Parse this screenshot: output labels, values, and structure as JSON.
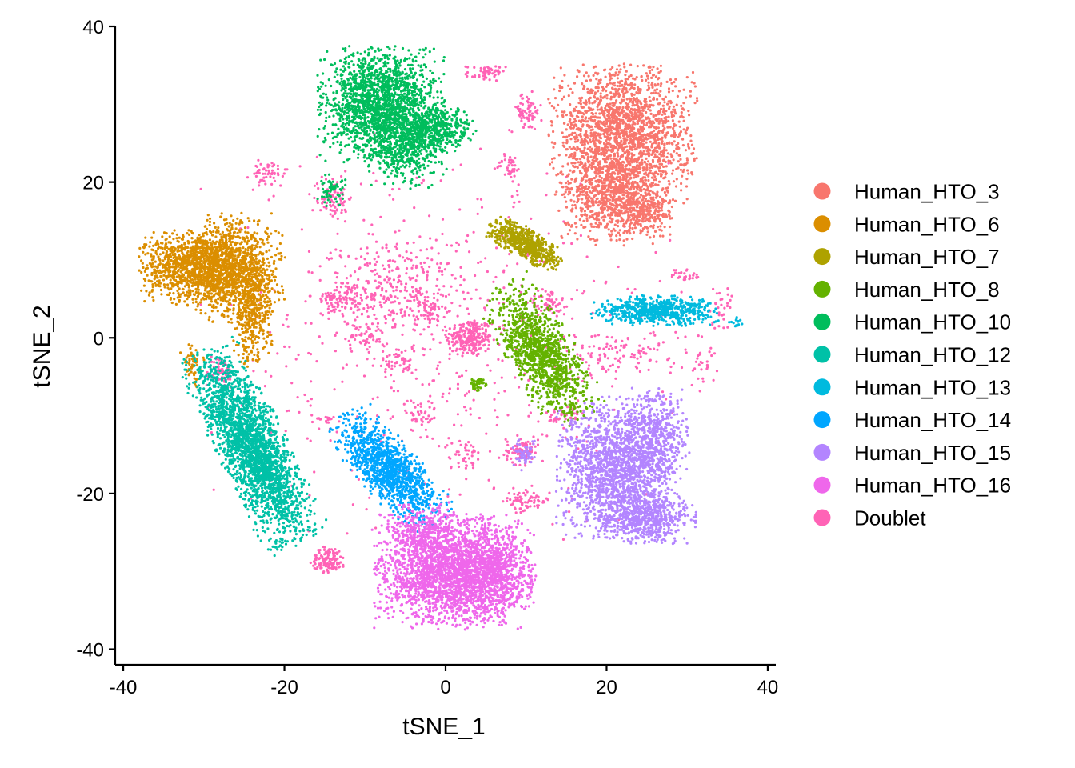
{
  "chart_data": {
    "type": "scatter",
    "xlabel": "tSNE_1",
    "ylabel": "tSNE_2",
    "xlim": [
      -41,
      41
    ],
    "ylim": [
      -42,
      40
    ],
    "xticks": [
      -40,
      -20,
      0,
      20,
      40
    ],
    "yticks": [
      -40,
      -20,
      0,
      20,
      40
    ],
    "grid": false,
    "legend_position": "right",
    "series": [
      {
        "name": "Human_HTO_3",
        "color": "#F8766D",
        "clusters": [
          {
            "cx": 22,
            "cy": 26,
            "sx": 4.2,
            "sy": 4.2,
            "n": 2100
          },
          {
            "cx": 21,
            "cy": 18,
            "sx": 3.2,
            "sy": 2.8,
            "n": 900
          },
          {
            "cx": 25,
            "cy": 16,
            "sx": 1.5,
            "sy": 1.0,
            "n": 150
          }
        ]
      },
      {
        "name": "Human_HTO_6",
        "color": "#DB8E00",
        "clusters": [
          {
            "cx": -31,
            "cy": 9,
            "sx": 3.2,
            "sy": 2.3,
            "n": 1200
          },
          {
            "cx": -26,
            "cy": 9,
            "sx": 2.8,
            "sy": 3.2,
            "n": 1000
          },
          {
            "cx": -24,
            "cy": 3,
            "sx": 1.2,
            "sy": 3.2,
            "n": 400
          },
          {
            "cx": -31.5,
            "cy": -3.5,
            "sx": 0.7,
            "sy": 1.3,
            "n": 60
          }
        ]
      },
      {
        "name": "Human_HTO_7",
        "color": "#AEA200",
        "clusters": [
          {
            "cx": 10,
            "cy": 12,
            "sx": 2.4,
            "sy": 0.9,
            "rot": -32,
            "n": 650
          }
        ]
      },
      {
        "name": "Human_HTO_8",
        "color": "#64B200",
        "clusters": [
          {
            "cx": 12,
            "cy": -2,
            "sx": 1.9,
            "sy": 4.6,
            "rot": 30,
            "n": 1300
          },
          {
            "cx": 4,
            "cy": -6,
            "sx": 0.6,
            "sy": 0.4,
            "n": 40
          }
        ]
      },
      {
        "name": "Human_HTO_10",
        "color": "#00BD5C",
        "clusters": [
          {
            "cx": -8,
            "cy": 30,
            "sx": 3.6,
            "sy": 3.4,
            "n": 2000
          },
          {
            "cx": -5,
            "cy": 24,
            "sx": 2.5,
            "sy": 2.2,
            "n": 500
          },
          {
            "cx": -1,
            "cy": 27,
            "sx": 2.2,
            "sy": 1.5,
            "n": 400
          },
          {
            "cx": -14,
            "cy": 19,
            "sx": 0.9,
            "sy": 1.0,
            "n": 70
          }
        ]
      },
      {
        "name": "Human_HTO_12",
        "color": "#00C1A7",
        "clusters": [
          {
            "cx": -24,
            "cy": -14,
            "sx": 2.0,
            "sy": 6.3,
            "rot": 25,
            "n": 2600
          }
        ]
      },
      {
        "name": "Human_HTO_13",
        "color": "#00BADE",
        "clusters": [
          {
            "cx": 26,
            "cy": 3.5,
            "sx": 3.6,
            "sy": 0.9,
            "n": 700
          },
          {
            "cx": 36,
            "cy": 2,
            "sx": 0.6,
            "sy": 0.3,
            "n": 15
          }
        ]
      },
      {
        "name": "Human_HTO_14",
        "color": "#00A6FF",
        "clusters": [
          {
            "cx": -7,
            "cy": -17,
            "sx": 1.7,
            "sy": 4.2,
            "rot": 40,
            "n": 1300
          }
        ]
      },
      {
        "name": "Human_HTO_15",
        "color": "#B385FF",
        "clusters": [
          {
            "cx": 21,
            "cy": -17,
            "sx": 3.3,
            "sy": 4.3,
            "n": 1800
          },
          {
            "cx": 26,
            "cy": -13,
            "sx": 2.0,
            "sy": 3.0,
            "n": 500
          },
          {
            "cx": 25,
            "cy": -23,
            "sx": 2.8,
            "sy": 1.6,
            "n": 600
          },
          {
            "cx": 10,
            "cy": -15,
            "sx": 0.8,
            "sy": 1.0,
            "n": 60
          }
        ]
      },
      {
        "name": "Human_HTO_16",
        "color": "#EF67EB",
        "clusters": [
          {
            "cx": 1,
            "cy": -30,
            "sx": 4.6,
            "sy": 3.4,
            "n": 2700
          },
          {
            "cx": 6,
            "cy": -30,
            "sx": 2.4,
            "sy": 2.3,
            "n": 500
          },
          {
            "cx": -3,
            "cy": -25,
            "sx": 2.0,
            "sy": 1.8,
            "n": 300
          }
        ]
      },
      {
        "name": "Doublet",
        "color": "#FF63B6",
        "clusters": [
          {
            "cx": 3,
            "cy": 0,
            "sx": 1.4,
            "sy": 1.2,
            "n": 250
          },
          {
            "cx": -7,
            "cy": 6,
            "sx": 4.0,
            "sy": 3.0,
            "n": 300
          },
          {
            "cx": -13,
            "cy": 5,
            "sx": 1.2,
            "sy": 1.0,
            "n": 80
          },
          {
            "cx": 5,
            "cy": 34,
            "sx": 1.2,
            "sy": 0.5,
            "n": 60
          },
          {
            "cx": 10,
            "cy": 29,
            "sx": 1.0,
            "sy": 1.2,
            "n": 70
          },
          {
            "cx": -22,
            "cy": 21,
            "sx": 1.2,
            "sy": 0.9,
            "n": 60
          },
          {
            "cx": -14,
            "cy": 18,
            "sx": 1.2,
            "sy": 1.5,
            "n": 90
          },
          {
            "cx": 8,
            "cy": 22,
            "sx": 0.8,
            "sy": 0.8,
            "n": 40
          },
          {
            "cx": -28,
            "cy": -4.5,
            "sx": 0.9,
            "sy": 1.0,
            "n": 90
          },
          {
            "cx": -14.5,
            "cy": -28.5,
            "sx": 1.1,
            "sy": 0.8,
            "n": 130
          },
          {
            "cx": 9.5,
            "cy": -14.5,
            "sx": 1.0,
            "sy": 0.9,
            "n": 90
          },
          {
            "cx": 10,
            "cy": -21,
            "sx": 1.5,
            "sy": 0.8,
            "n": 80
          },
          {
            "cx": -2,
            "cy": 4,
            "sx": 1.0,
            "sy": 1.0,
            "n": 60
          },
          {
            "cx": -10,
            "cy": 0,
            "sx": 1.2,
            "sy": 1.0,
            "n": 50
          },
          {
            "cx": -6,
            "cy": -3,
            "sx": 1.3,
            "sy": 1.0,
            "n": 50
          },
          {
            "cx": 22,
            "cy": -2,
            "sx": 4.0,
            "sy": 1.5,
            "n": 120
          },
          {
            "cx": 30,
            "cy": 8,
            "sx": 1.0,
            "sy": 0.5,
            "n": 30
          },
          {
            "cx": 34,
            "cy": 4,
            "sx": 0.8,
            "sy": 1.4,
            "n": 30
          },
          {
            "cx": 32,
            "cy": -3,
            "sx": 0.8,
            "sy": 1.8,
            "n": 30
          },
          {
            "cx": 13,
            "cy": 4.5,
            "sx": 1.0,
            "sy": 1.0,
            "n": 60
          },
          {
            "cx": 2,
            "cy": -15,
            "sx": 1.0,
            "sy": 1.0,
            "n": 40
          },
          {
            "cx": -3,
            "cy": -10,
            "sx": 1.0,
            "sy": 1.0,
            "n": 40
          },
          {
            "cx": 15,
            "cy": -10,
            "sx": 1.2,
            "sy": 0.8,
            "n": 40
          },
          {
            "cx": -15,
            "cy": -10.5,
            "sx": 0.8,
            "sy": 0.3,
            "n": 20
          },
          {
            "cx": 0,
            "cy": 0,
            "sx": 14,
            "sy": 12,
            "n": 600
          }
        ]
      }
    ]
  }
}
